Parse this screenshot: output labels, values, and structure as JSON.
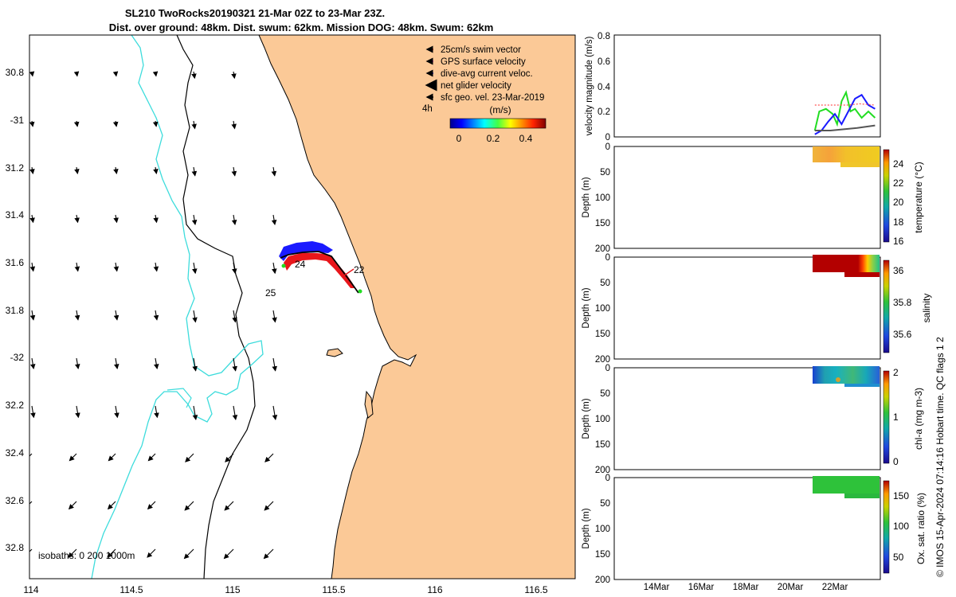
{
  "header": {
    "title_line1": "SL210 TwoRocks20190321 21-Mar 02Z to 23-Mar 23Z.",
    "title_line2": "Dist. over ground: 48km. Dist. swum: 62km. Mission DOG: 48km. Swum: 62km"
  },
  "map": {
    "lon_ticks": [
      "114",
      "114.5",
      "115",
      "115.5",
      "116",
      "116.5"
    ],
    "lat_ticks": [
      "30.8",
      "-31",
      "31.2",
      "31.4",
      "31.6",
      "31.8",
      "-32",
      "32.2",
      "32.4",
      "32.6",
      "32.8"
    ],
    "legend": [
      {
        "label": "25cm/s swim vector",
        "color": "#e8161b"
      },
      {
        "label": "GPS surface velocity",
        "color": "#ff33cc"
      },
      {
        "label": "dive-avg current veloc.",
        "color": "#1a1aff"
      },
      {
        "label": "net glider velocity",
        "color": "#22dd22"
      },
      {
        "label": "sfc geo. vel. 23-Mar-2019",
        "color": "#000000"
      }
    ],
    "time_label": "4h",
    "colorbar_title": "(m/s)",
    "colorbar_ticks": [
      "0",
      "0.2",
      "0.4"
    ],
    "day_labels": [
      "24",
      "22",
      "25"
    ],
    "isobath_label": "isobaths: 0   200  1000m",
    "colors": {
      "land": "#fbc997",
      "ocean": "#ffffff",
      "isobath_200": "#000000",
      "isobath_1000": "#3ddcdc"
    }
  },
  "panels": {
    "velocity": {
      "ylabel": "velocity magnitude (m/s)",
      "yticks": [
        "0",
        "0.2",
        "0.4",
        "0.6",
        "0.8"
      ]
    },
    "temperature": {
      "ylabel": "Depth (m)",
      "yticks": [
        "0",
        "50",
        "100",
        "150",
        "200"
      ],
      "cbar_label": "temperature (°C)",
      "cbar_ticks": [
        "16",
        "18",
        "20",
        "22",
        "24"
      ]
    },
    "salinity": {
      "ylabel": "Depth (m)",
      "yticks": [
        "0",
        "50",
        "100",
        "150",
        "200"
      ],
      "cbar_label": "salinity",
      "cbar_ticks": [
        "35.6",
        "35.8",
        "36"
      ]
    },
    "chla": {
      "ylabel": "Depth (m)",
      "yticks": [
        "0",
        "50",
        "100",
        "150",
        "200"
      ],
      "cbar_label": "chl-a (mg m-3)",
      "cbar_ticks": [
        "0",
        "1",
        "2"
      ]
    },
    "oxygen": {
      "ylabel": "Depth (m)",
      "yticks": [
        "0",
        "50",
        "100",
        "150",
        "200"
      ],
      "cbar_label": "Ox. sat. ratio (%)",
      "cbar_ticks": [
        "50",
        "100",
        "150"
      ]
    },
    "time_ticks": [
      "14Mar",
      "16Mar",
      "18Mar",
      "20Mar",
      "22Mar"
    ]
  },
  "footer": {
    "credit": "© IMOS 15-Apr-2024 07:14:16 Hobart time. QC flags 1  2"
  },
  "chart_data": [
    {
      "type": "scatter",
      "title": "SL210 TwoRocks20190321 21-Mar 02Z to 23-Mar 23Z.",
      "subtitle": "Dist. over ground: 48km. Dist. swum: 62km. Mission DOG: 48km. Swum: 62km",
      "xlim": [
        114,
        116.7
      ],
      "ylim": [
        -32.9,
        -30.7
      ],
      "glider_track": {
        "x": [
          115.62,
          115.58,
          115.55,
          115.51,
          115.45,
          115.38,
          115.31,
          115.27,
          115.24
        ],
        "y": [
          -31.73,
          -31.68,
          -31.64,
          -31.59,
          -31.56,
          -31.56,
          -31.57,
          -31.58,
          -31.62
        ]
      },
      "day_markers": [
        {
          "label": "22",
          "x": 115.62,
          "y": -31.62
        },
        {
          "label": "24",
          "x": 115.33,
          "y": -31.61
        },
        {
          "label": "25",
          "x": 115.17,
          "y": -31.73
        }
      ],
      "legend": [
        "25cm/s swim vector",
        "GPS surface velocity",
        "dive-avg current veloc.",
        "net glider velocity",
        "sfc geo. vel. 23-Mar-2019"
      ],
      "colorbar": {
        "label": "(m/s)",
        "range": [
          0,
          0.5
        ]
      }
    },
    {
      "type": "line",
      "ylabel": "velocity magnitude (m/s)",
      "ylim": [
        0,
        0.8
      ],
      "x_categories": [
        "14Mar",
        "16Mar",
        "18Mar",
        "20Mar",
        "22Mar"
      ],
      "series": [
        {
          "color": "#22dd22",
          "x": [
            21.1,
            21.3,
            21.6,
            21.9,
            22.1,
            22.3,
            22.5,
            22.7,
            22.9,
            23.2,
            23.5,
            23.8
          ],
          "values": [
            0.05,
            0.2,
            0.22,
            0.18,
            0.1,
            0.28,
            0.35,
            0.2,
            0.22,
            0.15,
            0.2,
            0.15
          ]
        },
        {
          "color": "#1a1aff",
          "x": [
            21.1,
            21.4,
            21.7,
            22.0,
            22.3,
            22.6,
            22.9,
            23.2,
            23.5,
            23.8
          ],
          "values": [
            0.02,
            0.05,
            0.12,
            0.18,
            0.1,
            0.2,
            0.3,
            0.33,
            0.25,
            0.22
          ]
        },
        {
          "color": "#ff5555",
          "x": [
            21.1,
            21.6,
            22.1,
            22.6,
            23.1,
            23.8
          ],
          "values": [
            0.25,
            0.25,
            0.25,
            0.25,
            0.26,
            0.25
          ]
        },
        {
          "color": "#555555",
          "x": [
            21.1,
            21.8,
            22.4,
            23.0,
            23.8
          ],
          "values": [
            0.05,
            0.05,
            0.06,
            0.07,
            0.09
          ]
        }
      ]
    },
    {
      "type": "heatmap",
      "ylabel": "Depth (m)",
      "ylim": [
        200,
        0
      ],
      "colorbar_label": "temperature (°C)",
      "crange": [
        16,
        25
      ],
      "x_categories": [
        "14Mar",
        "16Mar",
        "18Mar",
        "20Mar",
        "22Mar"
      ],
      "data_extent": {
        "x": [
          21.1,
          23.8
        ],
        "depth": [
          0,
          35
        ]
      },
      "typical_value": 24
    },
    {
      "type": "heatmap",
      "ylabel": "Depth (m)",
      "ylim": [
        200,
        0
      ],
      "colorbar_label": "salinity",
      "crange": [
        35.5,
        36.05
      ],
      "x_categories": [
        "14Mar",
        "16Mar",
        "18Mar",
        "20Mar",
        "22Mar"
      ],
      "data_extent": {
        "x": [
          21.1,
          23.8
        ],
        "depth": [
          0,
          35
        ]
      },
      "typical_value": 36.0
    },
    {
      "type": "heatmap",
      "ylabel": "Depth (m)",
      "ylim": [
        200,
        0
      ],
      "colorbar_label": "chl-a (mg m-3)",
      "crange": [
        0,
        2
      ],
      "x_categories": [
        "14Mar",
        "16Mar",
        "18Mar",
        "20Mar",
        "22Mar"
      ],
      "data_extent": {
        "x": [
          21.1,
          23.8
        ],
        "depth": [
          0,
          35
        ]
      },
      "typical_value": 0.7
    },
    {
      "type": "heatmap",
      "ylabel": "Depth (m)",
      "ylim": [
        200,
        0
      ],
      "colorbar_label": "Ox. sat. ratio (%)",
      "crange": [
        20,
        175
      ],
      "x_categories": [
        "14Mar",
        "16Mar",
        "18Mar",
        "20Mar",
        "22Mar"
      ],
      "data_extent": {
        "x": [
          21.1,
          23.8
        ],
        "depth": [
          0,
          40
        ]
      },
      "typical_value": 105
    }
  ]
}
